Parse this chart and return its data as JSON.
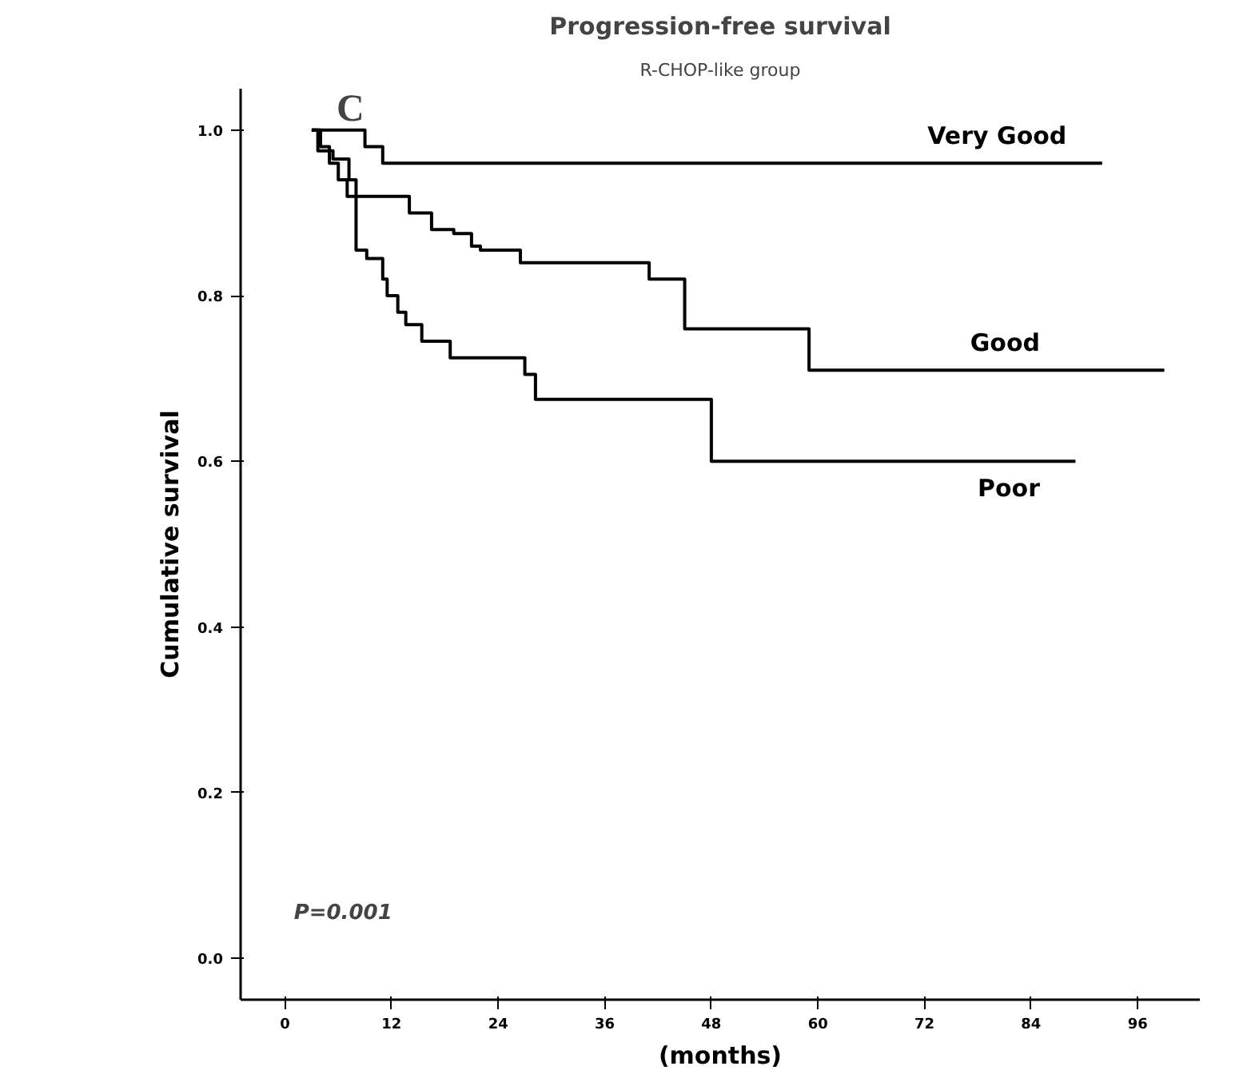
{
  "chart_data": {
    "type": "step",
    "title": "Progression-free survival",
    "subtitle": "R-CHOP-like group",
    "xlabel": "(months)",
    "ylabel": "Cumulative survival",
    "annotations": [
      "C",
      "P=0.001"
    ],
    "xlim": [
      -5,
      103
    ],
    "ylim": [
      -0.05,
      1.05
    ],
    "xticks": [
      0,
      12,
      24,
      36,
      48,
      60,
      72,
      84,
      96
    ],
    "yticks": [
      {
        "value": 0,
        "label": "0.0"
      },
      {
        "value": 0.2,
        "label": "0.2"
      },
      {
        "value": 0.4,
        "label": "0.4"
      },
      {
        "value": 0.6,
        "label": "0.6"
      },
      {
        "value": 0.8,
        "label": "0.8"
      },
      {
        "value": 1,
        "label": "1.0"
      }
    ],
    "grid": false,
    "line_style": "solid",
    "marker": "none",
    "series": [
      {
        "name": "Very Good",
        "color": "#000000",
        "x": [
          3,
          9,
          11,
          92
        ],
        "values": [
          1.0,
          0.98,
          0.96,
          0.96
        ]
      },
      {
        "name": "Good",
        "color": "#000000",
        "x": [
          3,
          4,
          5,
          6,
          7,
          14,
          16.5,
          19,
          21,
          22,
          26.5,
          41,
          45,
          59,
          99
        ],
        "values": [
          1.0,
          0.98,
          0.96,
          0.94,
          0.92,
          0.9,
          0.88,
          0.875,
          0.86,
          0.855,
          0.84,
          0.82,
          0.76,
          0.71,
          0.71
        ]
      },
      {
        "name": "Poor",
        "color": "#000000",
        "x": [
          3,
          3.7,
          5.4,
          7.2,
          8,
          9.2,
          11,
          11.5,
          12.7,
          13.6,
          15.4,
          18.6,
          27,
          28.2,
          48,
          89
        ],
        "values": [
          1.0,
          0.975,
          0.965,
          0.94,
          0.855,
          0.845,
          0.82,
          0.8,
          0.78,
          0.765,
          0.745,
          0.725,
          0.705,
          0.675,
          0.6,
          0.6
        ]
      }
    ]
  }
}
